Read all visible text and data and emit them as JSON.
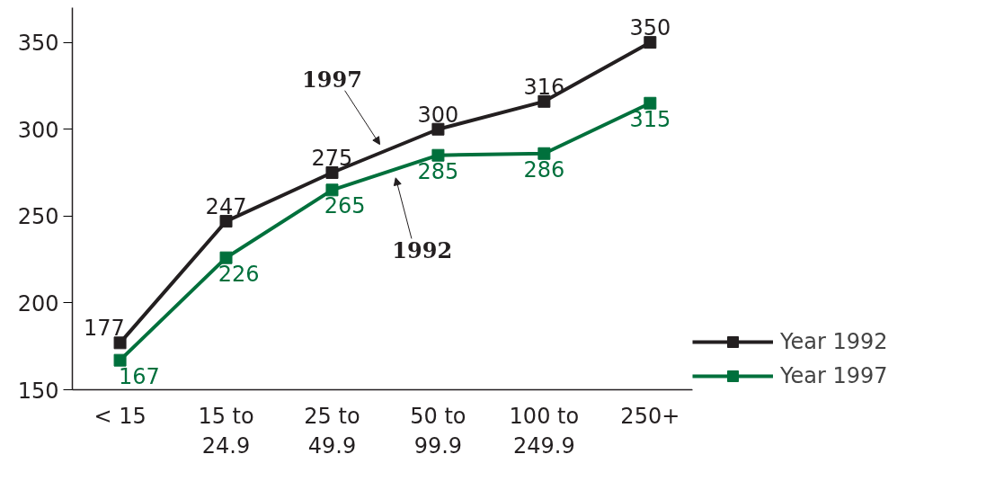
{
  "chart_data": {
    "type": "line",
    "categories": [
      "< 15",
      "15 to\n24.9",
      "25 to\n49.9",
      "50 to\n99.9",
      "100 to\n249.9",
      "250+"
    ],
    "series": [
      {
        "name": "Year 1992",
        "color": "#231f20",
        "values": [
          177,
          247,
          275,
          300,
          316,
          350
        ]
      },
      {
        "name": "Year 1997",
        "color": "#00703c",
        "values": [
          167,
          226,
          265,
          285,
          286,
          315
        ]
      }
    ],
    "ylim": [
      150,
      370
    ],
    "yticks": [
      150,
      200,
      250,
      300,
      350
    ],
    "data_labels": true,
    "marker": "square",
    "line_style": "solid",
    "grid": false,
    "legend": "bottom right",
    "annotations": [
      "1997",
      "1992"
    ]
  }
}
